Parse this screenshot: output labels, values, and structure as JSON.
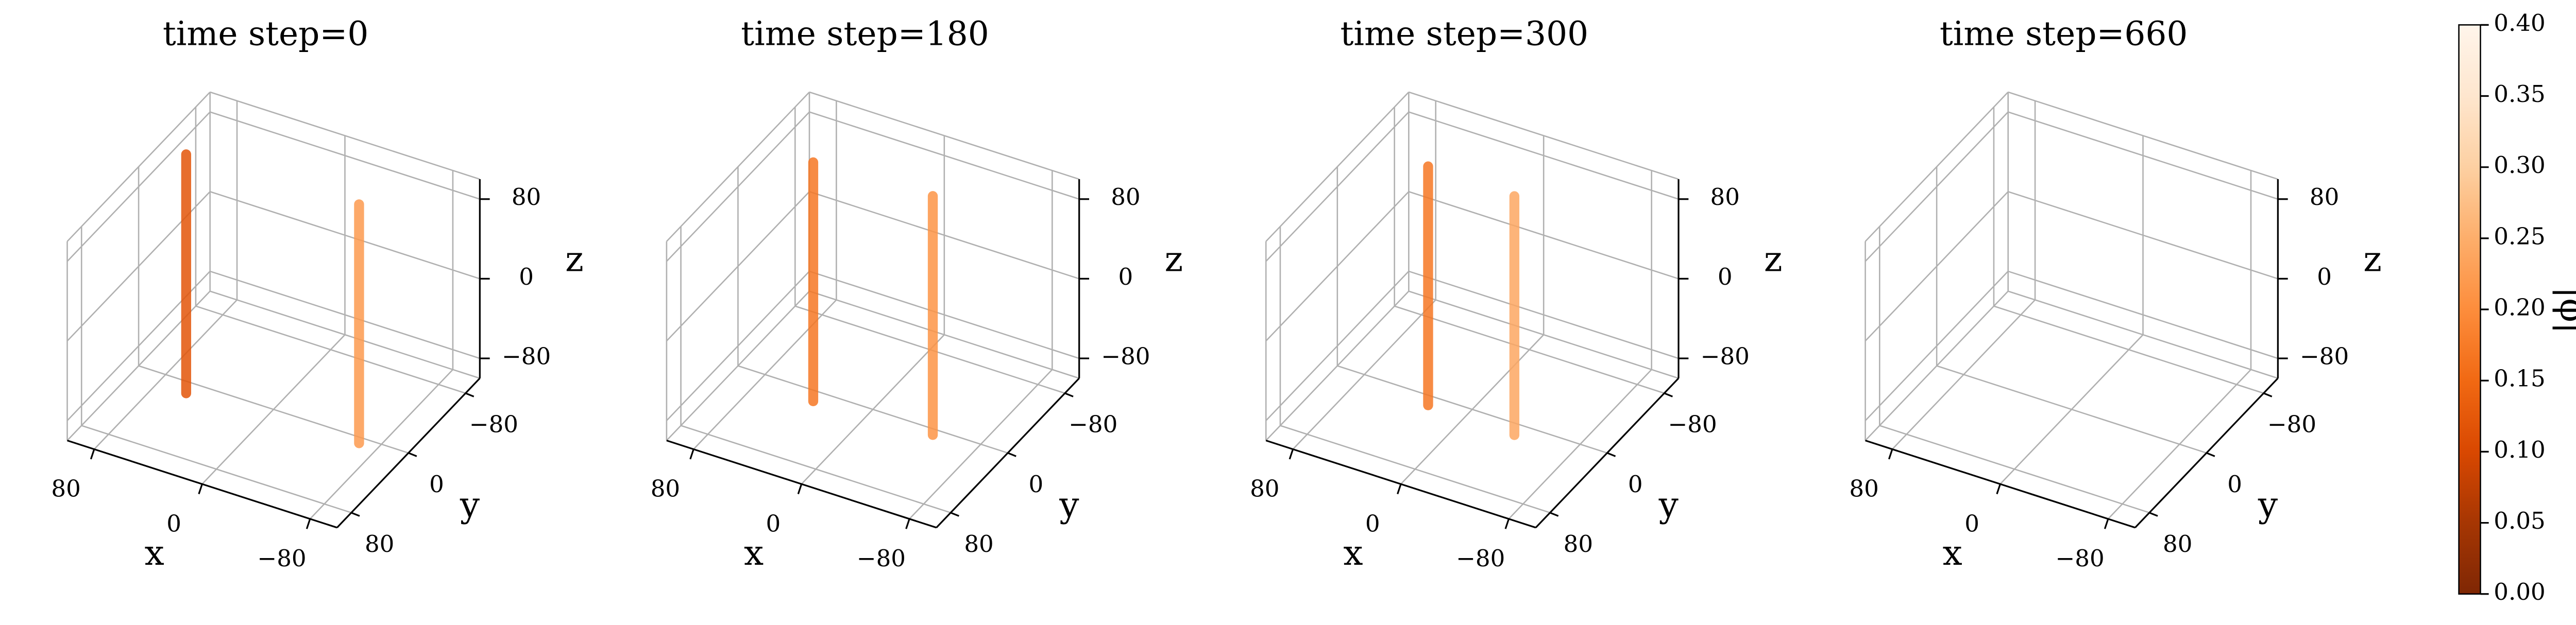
{
  "chart_data": [
    {
      "type": "line3d",
      "title": "time step=0",
      "xlabel": "x",
      "ylabel": "y",
      "zlabel": "z",
      "xlim": [
        -100,
        100
      ],
      "ylim": [
        -100,
        100
      ],
      "zlim": [
        -100,
        100
      ],
      "xticks": [
        {
          "value": -80,
          "label": "−80"
        },
        0,
        80
      ],
      "yticks": [
        {
          "value": -80,
          "label": "−80"
        },
        0,
        80
      ],
      "zticks": [
        {
          "value": -80,
          "label": "−80"
        },
        0,
        80
      ],
      "series": [
        {
          "x": 69,
          "y": -8,
          "z": [
            -120,
            120
          ],
          "value": 0.12
        },
        {
          "x": -56,
          "y": -14,
          "z": [
            -120,
            120
          ],
          "value": 0.22
        }
      ]
    },
    {
      "type": "line3d",
      "title": "time step=180",
      "xlabel": "x",
      "ylabel": "y",
      "zlabel": "z",
      "xlim": [
        -100,
        100
      ],
      "ylim": [
        -100,
        100
      ],
      "zlim": [
        -100,
        100
      ],
      "xticks": [
        {
          "value": -80,
          "label": "−80"
        },
        0,
        80
      ],
      "yticks": [
        {
          "value": -80,
          "label": "−80"
        },
        0,
        80
      ],
      "zticks": [
        {
          "value": -80,
          "label": "−80"
        },
        0,
        80
      ],
      "series": [
        {
          "x": 49,
          "y": -9,
          "z": [
            -120,
            120
          ],
          "value": 0.17
        },
        {
          "x": -37,
          "y": -14,
          "z": [
            -120,
            120
          ],
          "value": 0.21
        }
      ]
    },
    {
      "type": "line3d",
      "title": "time step=300",
      "xlabel": "x",
      "ylabel": "y",
      "zlabel": "z",
      "xlim": [
        -100,
        100
      ],
      "ylim": [
        -100,
        100
      ],
      "zlim": [
        -100,
        100
      ],
      "xticks": [
        {
          "value": -80,
          "label": "−80"
        },
        0,
        80
      ],
      "yticks": [
        {
          "value": -80,
          "label": "−80"
        },
        0,
        80
      ],
      "zticks": [
        {
          "value": -80,
          "label": "−80"
        },
        0,
        80
      ],
      "series": [
        {
          "x": 38,
          "y": -10,
          "z": [
            -120,
            120
          ],
          "value": 0.17
        },
        {
          "x": -27,
          "y": -8,
          "z": [
            -120,
            120
          ],
          "value": 0.24
        }
      ]
    },
    {
      "type": "line3d",
      "title": "time step=660",
      "xlabel": "x",
      "ylabel": "y",
      "zlabel": "z",
      "xlim": [
        -100,
        100
      ],
      "ylim": [
        -100,
        100
      ],
      "zlim": [
        -100,
        100
      ],
      "xticks": [
        {
          "value": -80,
          "label": "−80"
        },
        0,
        80
      ],
      "yticks": [
        {
          "value": -80,
          "label": "−80"
        },
        0,
        80
      ],
      "zticks": [
        {
          "value": -80,
          "label": "−80"
        },
        0,
        80
      ],
      "series": []
    }
  ],
  "colorbar": {
    "label": "|ϕ|",
    "clim": [
      0,
      0.4
    ],
    "ticks": [
      {
        "value": 0,
        "label": "0.00"
      },
      {
        "value": 0.05,
        "label": "0.05"
      },
      {
        "value": 0.1,
        "label": "0.10"
      },
      {
        "value": 0.15,
        "label": "0.15"
      },
      {
        "value": 0.2,
        "label": "0.20"
      },
      {
        "value": 0.25,
        "label": "0.25"
      },
      {
        "value": 0.3,
        "label": "0.30"
      },
      {
        "value": 0.35,
        "label": "0.35"
      },
      {
        "value": 0.4,
        "label": "0.40"
      }
    ],
    "colormap": [
      "#7f2704",
      "#a63603",
      "#d94801",
      "#f16913",
      "#fd8d3c",
      "#fdae6b",
      "#fdd0a2",
      "#fee6ce",
      "#fff5eb"
    ]
  }
}
